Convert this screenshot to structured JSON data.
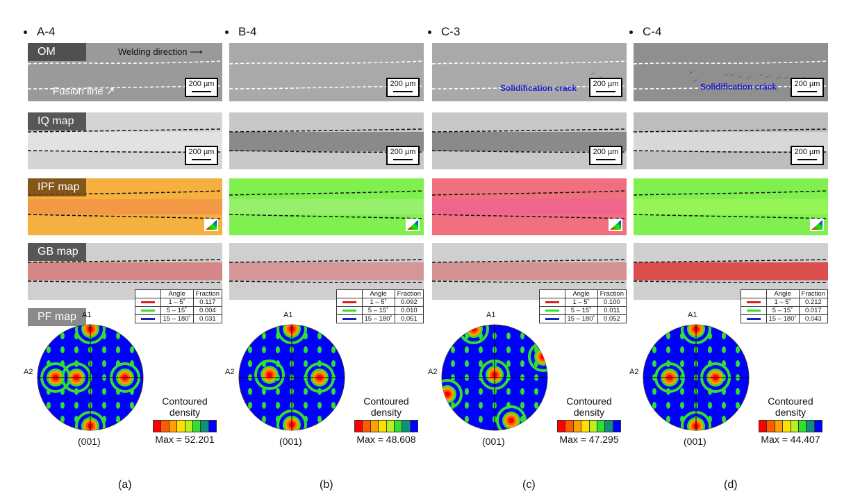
{
  "figure": {
    "row_labels": {
      "om": "OM",
      "iq": "IQ map",
      "ipf": "IPF map",
      "gb": "GB map",
      "pf": "PF map"
    },
    "scale_bar": "200 µm",
    "welding_direction": "Welding direction",
    "fusion_line": "Fusion line",
    "crack_label": "Solidification crack",
    "gb_table_headers": {
      "angle": "Angle",
      "fraction": "Fraction"
    },
    "gb_angles": [
      "1 – 5˚",
      "5 – 15˚",
      "15 – 180˚"
    ],
    "gb_colors": [
      "#e02020",
      "#30e030",
      "#1a20c8"
    ],
    "pf_axes": {
      "top": "A1",
      "left": "A2",
      "bottom": "(001)"
    },
    "density_title_1": "Contoured",
    "density_title_2": "density",
    "density_colors": [
      "#ff0000",
      "#ff5a00",
      "#ffa000",
      "#ffe000",
      "#b8f020",
      "#30e030",
      "#10907a",
      "#0000ff"
    ],
    "ipf_colors": {
      "orange": "#f5b040",
      "green": "#80f050",
      "pink": "#f07080"
    }
  },
  "samples": [
    {
      "title": "A-4",
      "sub_label": "(a)",
      "gb_fractions": [
        "0.117",
        "0.004",
        "0.031"
      ],
      "pf_max": "Max = 52.201",
      "has_crack": false
    },
    {
      "title": "B-4",
      "sub_label": "(b)",
      "gb_fractions": [
        "0.092",
        "0.010",
        "0.051"
      ],
      "pf_max": "Max = 48.608",
      "has_crack": false
    },
    {
      "title": "C-3",
      "sub_label": "(c)",
      "gb_fractions": [
        "0.100",
        "0.011",
        "0.052"
      ],
      "pf_max": "Max = 47.295",
      "has_crack": true
    },
    {
      "title": "C-4",
      "sub_label": "(d)",
      "gb_fractions": [
        "0.212",
        "0.017",
        "0.043"
      ],
      "pf_max": "Max = 44.407",
      "has_crack": true
    }
  ]
}
